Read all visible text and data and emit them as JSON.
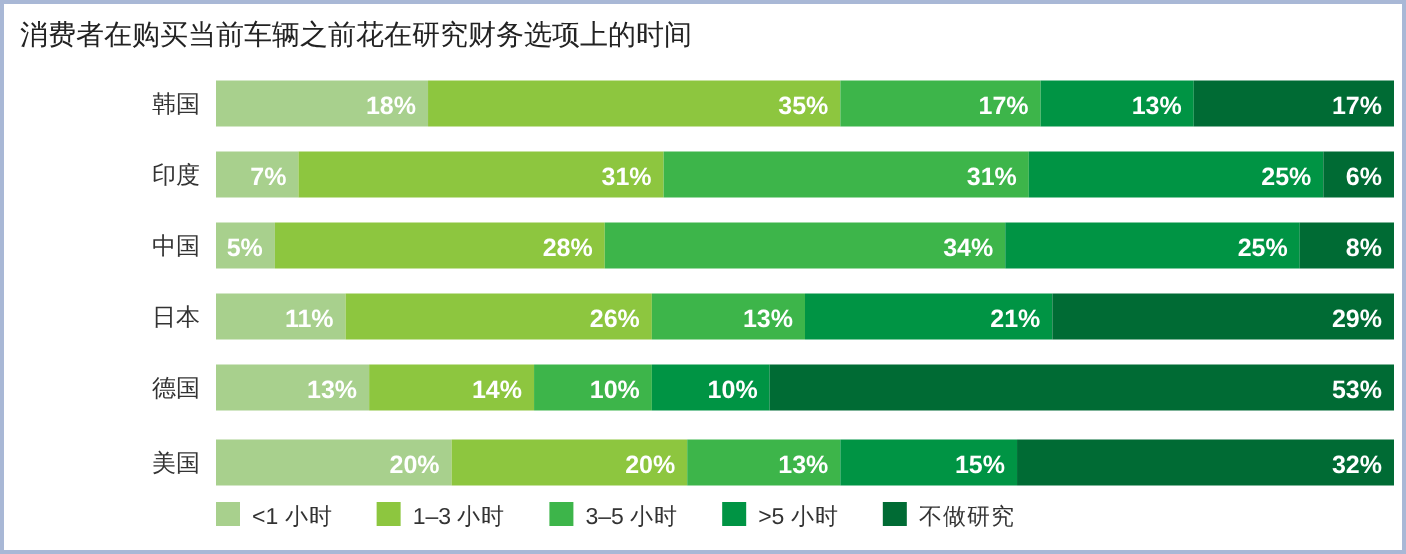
{
  "chart_data": {
    "type": "bar",
    "orientation": "horizontal",
    "stacked": true,
    "legend": "bottom",
    "title": "消费者在购买当前车辆之前花在研究财务选项上的时间",
    "categories": [
      "韩国",
      "印度",
      "中国",
      "日本",
      "德国",
      "美国"
    ],
    "series": [
      {
        "name": "<1 小时",
        "color": "#a8d08d",
        "values": [
          18,
          7,
          5,
          11,
          13,
          20
        ],
        "value_labels": [
          "18%",
          "7%",
          "5%",
          "11%",
          "13%",
          "20%"
        ]
      },
      {
        "name": "1–3 小时",
        "color": "#8dc63f",
        "values": [
          35,
          31,
          28,
          26,
          14,
          20
        ],
        "value_labels": [
          "35%",
          "31%",
          "28%",
          "26%",
          "14%",
          "20%"
        ]
      },
      {
        "name": "3–5 小时",
        "color": "#3db54a",
        "values": [
          17,
          31,
          34,
          13,
          10,
          13
        ],
        "value_labels": [
          "17%",
          "31%",
          "34%",
          "13%",
          "10%",
          "13%"
        ]
      },
      {
        "name": ">5 小时",
        "color": "#009444",
        "values": [
          13,
          25,
          25,
          21,
          10,
          15
        ],
        "value_labels": [
          "13%",
          "25%",
          "25%",
          "21%",
          "10%",
          "15%"
        ]
      },
      {
        "name": "不做研究",
        "color": "#006b34",
        "values": [
          17,
          6,
          8,
          29,
          53,
          32
        ],
        "value_labels": [
          "17%",
          "6%",
          "8%",
          "29%",
          "53%",
          "32%"
        ]
      }
    ]
  }
}
